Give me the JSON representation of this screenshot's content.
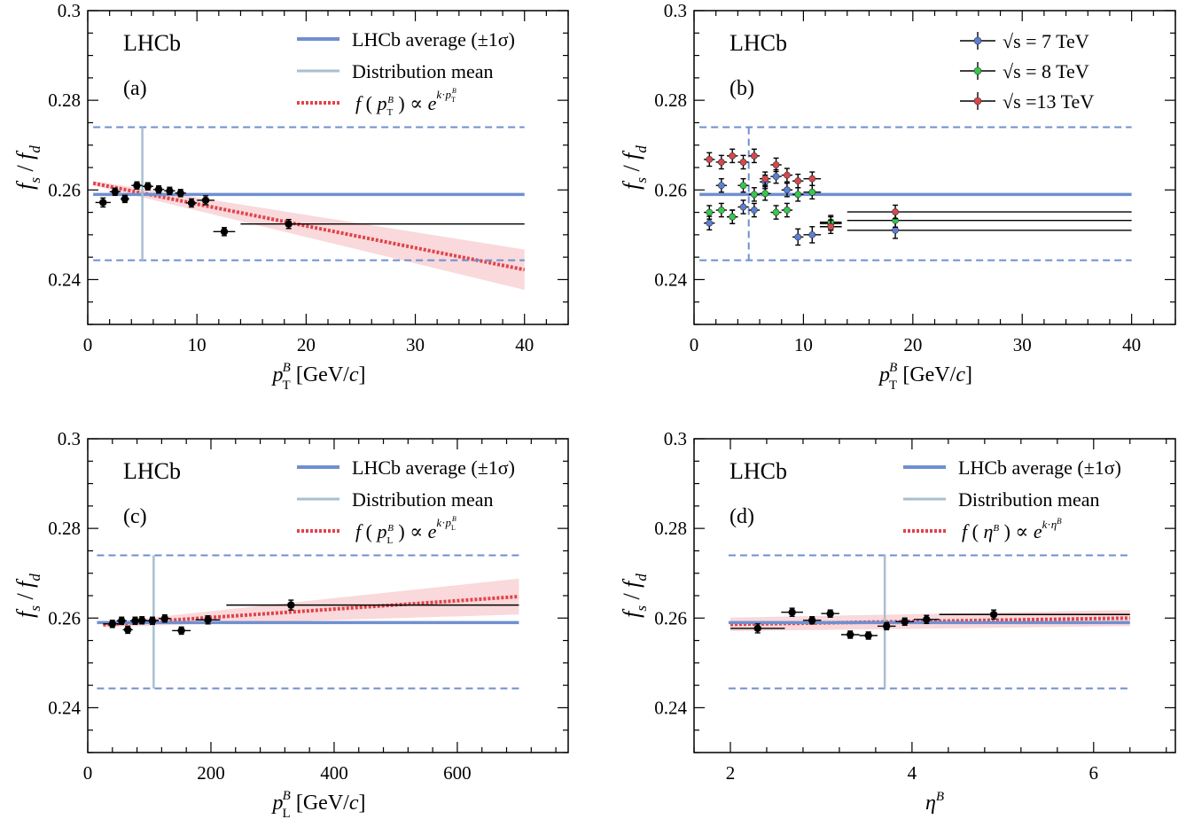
{
  "colors": {
    "average": "#6f8fcf",
    "band": "#6f8fcf",
    "mean": "#a9bfd0",
    "fit": "#e0434a",
    "fit_band": "#f4b9bd",
    "data": "#000000",
    "s7": "#5b7fd6",
    "s8": "#35c94a",
    "s13": "#d9474d"
  },
  "chart_data": [
    {
      "id": "a",
      "type": "scatter",
      "panel_label": "(a)",
      "experiment_label": "LHCb",
      "xlabel": "p_T^B [GeV/c]",
      "ylabel": "f_s / f_d",
      "xlim": [
        0,
        44
      ],
      "ylim": [
        0.23,
        0.3
      ],
      "xticks": [
        "0",
        "10",
        "20",
        "30",
        "40"
      ],
      "yticks": [
        "0.24",
        "0.26",
        "0.28",
        "0.3"
      ],
      "legend": {
        "position": "top-right",
        "entries": [
          {
            "key": "average",
            "text": "LHCb average (±1σ)"
          },
          {
            "key": "mean",
            "text": "Distribution mean"
          },
          {
            "key": "fit",
            "text": "f ( p_T^B ) ∝ e^{k·p_T^B}"
          }
        ]
      },
      "average": 0.259,
      "band": [
        0.2443,
        0.274
      ],
      "mean_x": 5.0,
      "fit": {
        "x": [
          0.5,
          40
        ],
        "y": [
          0.2615,
          0.2422
        ],
        "width": [
          0.0005,
          0.0045
        ]
      },
      "series": [
        {
          "color_key": "data",
          "points": [
            {
              "x": 1.4,
              "y": 0.2572,
              "xerr": 0.7,
              "yerr": 0.001
            },
            {
              "x": 2.5,
              "y": 0.2596,
              "xerr": 0.5,
              "yerr": 0.0008
            },
            {
              "x": 3.4,
              "y": 0.258,
              "xerr": 0.4,
              "yerr": 0.0008
            },
            {
              "x": 4.5,
              "y": 0.261,
              "xerr": 0.5,
              "yerr": 0.0008
            },
            {
              "x": 5.5,
              "y": 0.2608,
              "xerr": 0.5,
              "yerr": 0.0008
            },
            {
              "x": 6.5,
              "y": 0.2601,
              "xerr": 0.5,
              "yerr": 0.0008
            },
            {
              "x": 7.5,
              "y": 0.2598,
              "xerr": 0.5,
              "yerr": 0.0008
            },
            {
              "x": 8.5,
              "y": 0.2593,
              "xerr": 0.5,
              "yerr": 0.0008
            },
            {
              "x": 9.5,
              "y": 0.2571,
              "xerr": 0.5,
              "yerr": 0.0009
            },
            {
              "x": 10.8,
              "y": 0.2577,
              "xerr": 0.8,
              "yerr": 0.001
            },
            {
              "x": 12.5,
              "y": 0.2507,
              "xerr": 1.0,
              "yerr": 0.0009
            },
            {
              "x": 18.4,
              "y": 0.2524,
              "xerr": [
                4.4,
                21.6
              ],
              "yerr": 0.001
            }
          ]
        }
      ]
    },
    {
      "id": "b",
      "type": "scatter",
      "panel_label": "(b)",
      "experiment_label": "LHCb",
      "xlabel": "p_T^B [GeV/c]",
      "ylabel": "f_s / f_d",
      "xlim": [
        0,
        44
      ],
      "ylim": [
        0.23,
        0.3
      ],
      "xticks": [
        "0",
        "10",
        "20",
        "30",
        "40"
      ],
      "yticks": [
        "0.24",
        "0.26",
        "0.28",
        "0.3"
      ],
      "legend": {
        "position": "top-right",
        "entries": [
          {
            "key": "s7",
            "text": "√s = 7 TeV"
          },
          {
            "key": "s8",
            "text": "√s = 8 TeV"
          },
          {
            "key": "s13",
            "text": "√s =13 TeV"
          }
        ]
      },
      "average": 0.259,
      "band": [
        0.2443,
        0.274
      ],
      "mean_x": 5.0,
      "series": [
        {
          "name": "√s = 7 TeV",
          "color_key": "s7",
          "points": [
            {
              "x": 1.4,
              "y": 0.2526,
              "xerr": 0.5,
              "yerr": 0.0015
            },
            {
              "x": 2.5,
              "y": 0.261,
              "xerr": 0.5,
              "yerr": 0.0015
            },
            {
              "x": 3.5,
              "y": 0.254,
              "xerr": 0.5,
              "yerr": 0.0015
            },
            {
              "x": 4.5,
              "y": 0.2562,
              "xerr": 0.5,
              "yerr": 0.0015
            },
            {
              "x": 5.5,
              "y": 0.2555,
              "xerr": 0.5,
              "yerr": 0.0015
            },
            {
              "x": 6.5,
              "y": 0.2618,
              "xerr": 0.5,
              "yerr": 0.0015
            },
            {
              "x": 7.5,
              "y": 0.263,
              "xerr": 0.5,
              "yerr": 0.0015
            },
            {
              "x": 8.5,
              "y": 0.26,
              "xerr": 0.5,
              "yerr": 0.0015
            },
            {
              "x": 9.5,
              "y": 0.2495,
              "xerr": 0.5,
              "yerr": 0.0018
            },
            {
              "x": 10.8,
              "y": 0.25,
              "xerr": 0.8,
              "yerr": 0.0018
            },
            {
              "x": 12.5,
              "y": 0.2525,
              "xerr": 1.0,
              "yerr": 0.0015
            },
            {
              "x": 18.4,
              "y": 0.251,
              "xerr": [
                4.4,
                21.6
              ],
              "yerr": 0.0018
            }
          ]
        },
        {
          "name": "√s = 8 TeV",
          "color_key": "s8",
          "points": [
            {
              "x": 1.4,
              "y": 0.255,
              "xerr": 0.5,
              "yerr": 0.0015
            },
            {
              "x": 2.5,
              "y": 0.2555,
              "xerr": 0.5,
              "yerr": 0.0015
            },
            {
              "x": 3.5,
              "y": 0.254,
              "xerr": 0.5,
              "yerr": 0.0015
            },
            {
              "x": 4.5,
              "y": 0.261,
              "xerr": 0.5,
              "yerr": 0.0015
            },
            {
              "x": 5.5,
              "y": 0.259,
              "xerr": 0.5,
              "yerr": 0.0015
            },
            {
              "x": 6.5,
              "y": 0.2592,
              "xerr": 0.5,
              "yerr": 0.0015
            },
            {
              "x": 7.5,
              "y": 0.255,
              "xerr": 0.5,
              "yerr": 0.0015
            },
            {
              "x": 8.5,
              "y": 0.2555,
              "xerr": 0.5,
              "yerr": 0.0015
            },
            {
              "x": 9.5,
              "y": 0.259,
              "xerr": 0.5,
              "yerr": 0.0015
            },
            {
              "x": 10.8,
              "y": 0.2595,
              "xerr": 0.8,
              "yerr": 0.0015
            },
            {
              "x": 12.5,
              "y": 0.2528,
              "xerr": 1.0,
              "yerr": 0.0015
            },
            {
              "x": 18.4,
              "y": 0.2532,
              "xerr": [
                4.4,
                21.6
              ],
              "yerr": 0.0015
            }
          ]
        },
        {
          "name": "√s =13 TeV",
          "color_key": "s13",
          "points": [
            {
              "x": 1.4,
              "y": 0.2668,
              "xerr": 0.5,
              "yerr": 0.0015
            },
            {
              "x": 2.5,
              "y": 0.2662,
              "xerr": 0.5,
              "yerr": 0.0015
            },
            {
              "x": 3.5,
              "y": 0.2676,
              "xerr": 0.5,
              "yerr": 0.0015
            },
            {
              "x": 4.5,
              "y": 0.2662,
              "xerr": 0.5,
              "yerr": 0.0015
            },
            {
              "x": 5.5,
              "y": 0.2676,
              "xerr": 0.5,
              "yerr": 0.0015
            },
            {
              "x": 6.5,
              "y": 0.2625,
              "xerr": 0.5,
              "yerr": 0.0015
            },
            {
              "x": 7.5,
              "y": 0.2656,
              "xerr": 0.5,
              "yerr": 0.0015
            },
            {
              "x": 8.5,
              "y": 0.2633,
              "xerr": 0.5,
              "yerr": 0.0015
            },
            {
              "x": 9.5,
              "y": 0.262,
              "xerr": 0.5,
              "yerr": 0.0015
            },
            {
              "x": 10.8,
              "y": 0.2625,
              "xerr": 0.8,
              "yerr": 0.0015
            },
            {
              "x": 12.5,
              "y": 0.2518,
              "xerr": 1.0,
              "yerr": 0.0015
            },
            {
              "x": 18.4,
              "y": 0.2551,
              "xerr": [
                4.4,
                21.6
              ],
              "yerr": 0.0015
            }
          ]
        }
      ]
    },
    {
      "id": "c",
      "type": "scatter",
      "panel_label": "(c)",
      "experiment_label": "LHCb",
      "xlabel": "p_L^B [GeV/c]",
      "ylabel": "f_s / f_d",
      "xlim": [
        0,
        780
      ],
      "ylim": [
        0.23,
        0.3
      ],
      "xticks": [
        "0",
        "200",
        "400",
        "600"
      ],
      "yticks": [
        "0.24",
        "0.26",
        "0.28",
        "0.3"
      ],
      "legend": {
        "position": "top-right",
        "entries": [
          {
            "key": "average",
            "text": "LHCb average (±1σ)"
          },
          {
            "key": "mean",
            "text": "Distribution mean"
          },
          {
            "key": "fit",
            "text": "f ( p_L^B ) ∝ e^{k·p_L^B}"
          }
        ]
      },
      "average": 0.259,
      "band": [
        0.2443,
        0.274
      ],
      "mean_x": 107,
      "fit": {
        "x": [
          25,
          700
        ],
        "y": [
          0.2585,
          0.2648
        ],
        "width": [
          0.0005,
          0.004
        ]
      },
      "series": [
        {
          "color_key": "data",
          "points": [
            {
              "x": 40,
              "y": 0.2587,
              "xerr": 15,
              "yerr": 0.0008
            },
            {
              "x": 55,
              "y": 0.2594,
              "xerr": 8,
              "yerr": 0.0008
            },
            {
              "x": 65,
              "y": 0.2574,
              "xerr": 8,
              "yerr": 0.0008
            },
            {
              "x": 77,
              "y": 0.2594,
              "xerr": 8,
              "yerr": 0.0008
            },
            {
              "x": 88,
              "y": 0.2595,
              "xerr": 8,
              "yerr": 0.0008
            },
            {
              "x": 105,
              "y": 0.2594,
              "xerr": 10,
              "yerr": 0.0008
            },
            {
              "x": 125,
              "y": 0.2599,
              "xerr": 10,
              "yerr": 0.0008
            },
            {
              "x": 152,
              "y": 0.2572,
              "xerr": 15,
              "yerr": 0.0008
            },
            {
              "x": 195,
              "y": 0.2596,
              "xerr": 20,
              "yerr": 0.0009
            },
            {
              "x": 330,
              "y": 0.2629,
              "xerr": [
                105,
                370
              ],
              "yerr": 0.0011
            }
          ]
        }
      ]
    },
    {
      "id": "d",
      "type": "scatter",
      "panel_label": "(d)",
      "experiment_label": "LHCb",
      "xlabel": "η^B",
      "ylabel": "f_s / f_d",
      "xlim": [
        1.6,
        6.9
      ],
      "ylim": [
        0.23,
        0.3
      ],
      "xticks": [
        "2",
        "4",
        "6"
      ],
      "yticks": [
        "0.24",
        "0.26",
        "0.28",
        "0.3"
      ],
      "legend": {
        "position": "top-right",
        "entries": [
          {
            "key": "average",
            "text": "LHCb average (±1σ)"
          },
          {
            "key": "mean",
            "text": "Distribution mean"
          },
          {
            "key": "fit",
            "text": "f ( η^B ) ∝ e^{k·η^B}"
          }
        ]
      },
      "average": 0.259,
      "band": [
        0.2443,
        0.274
      ],
      "mean_x": 3.7,
      "fit": {
        "x": [
          2.0,
          6.4
        ],
        "y": [
          0.2586,
          0.26
        ],
        "width": [
          0.0015,
          0.0018
        ]
      },
      "series": [
        {
          "color_key": "data",
          "points": [
            {
              "x": 2.3,
              "y": 0.2577,
              "xerr": 0.3,
              "yerr": 0.001
            },
            {
              "x": 2.68,
              "y": 0.2613,
              "xerr": 0.12,
              "yerr": 0.0009
            },
            {
              "x": 2.9,
              "y": 0.2595,
              "xerr": 0.1,
              "yerr": 0.0008
            },
            {
              "x": 3.1,
              "y": 0.261,
              "xerr": 0.1,
              "yerr": 0.0008
            },
            {
              "x": 3.32,
              "y": 0.2563,
              "xerr": 0.1,
              "yerr": 0.0008
            },
            {
              "x": 3.52,
              "y": 0.2561,
              "xerr": 0.1,
              "yerr": 0.0008
            },
            {
              "x": 3.72,
              "y": 0.2582,
              "xerr": 0.1,
              "yerr": 0.0008
            },
            {
              "x": 3.92,
              "y": 0.2592,
              "xerr": 0.1,
              "yerr": 0.0008
            },
            {
              "x": 4.16,
              "y": 0.2597,
              "xerr": 0.14,
              "yerr": 0.0009
            },
            {
              "x": 4.9,
              "y": 0.2608,
              "xerr": [
                0.6,
                1.5
              ],
              "yerr": 0.001
            }
          ]
        }
      ]
    }
  ]
}
